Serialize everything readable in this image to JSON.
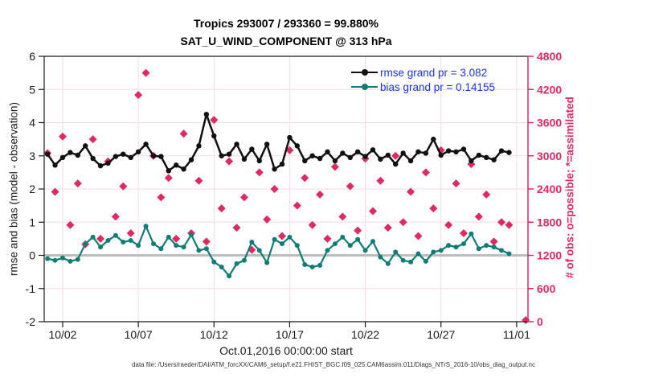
{
  "chart": {
    "title_line1": "Tropics 293007 / 293360 = 99.880%",
    "title_line2": "SAT_U_WIND_COMPONENT @ 313 hPa",
    "xlabel": "Oct.01,2016 00:00:00 start",
    "ylabel_left": "rmse and bias (model - observation)",
    "ylabel_right": "# of obs: o=possible; *=assimilated",
    "data_file": "data file: /Users/raeder/DAI/ATM_forcXX/CAM6_setup/f.e21.FHIST_BGC.f09_025.CAM6assim.011/Diags_NTrS_2016-10/obs_diag_output.nc",
    "legend": {
      "rmse_label": "rmse grand pr = 3.082",
      "bias_label": "bias grand pr = 0.14155"
    }
  },
  "chart_data": {
    "type": "line",
    "title": "Tropics 293007 / 293360 = 99.880% | SAT_U_WIND_COMPONENT @ 313 hPa",
    "xlabel": "Oct.01,2016 00:00:00 start",
    "ylabel_left": "rmse and bias (model - observation)",
    "ylabel_right": "# of obs: o=possible; *=assimilated",
    "x_axis": {
      "lim_days": [
        0.78,
        32.75
      ],
      "ticks": [
        {
          "day": 2,
          "label": "10/02"
        },
        {
          "day": 7,
          "label": "10/07"
        },
        {
          "day": 12,
          "label": "10/12"
        },
        {
          "day": 17,
          "label": "10/17"
        },
        {
          "day": 22,
          "label": "10/22"
        },
        {
          "day": 27,
          "label": "10/27"
        },
        {
          "day": 32,
          "label": "11/01"
        }
      ]
    },
    "y_left": {
      "min": -2,
      "max": 6,
      "tick_step": 1,
      "tick_labels": [
        "-2",
        "-1",
        "0",
        "1",
        "2",
        "3",
        "4",
        "5",
        "6"
      ]
    },
    "y_right": {
      "min": 0,
      "max": 4800,
      "tick_step": 600,
      "tick_labels": [
        "0",
        "600",
        "1200",
        "1800",
        "2400",
        "3000",
        "3600",
        "4200",
        "4800"
      ]
    },
    "x_days": [
      1,
      1.5,
      2,
      2.5,
      3,
      3.5,
      4,
      4.5,
      5,
      5.5,
      6,
      6.5,
      7,
      7.5,
      8,
      8.5,
      9,
      9.5,
      10,
      10.5,
      11,
      11.5,
      12,
      12.5,
      13,
      13.5,
      14,
      14.5,
      15,
      15.5,
      16,
      16.5,
      17,
      17.5,
      18,
      18.5,
      19,
      19.5,
      20,
      20.5,
      21,
      21.5,
      22,
      22.5,
      23,
      23.5,
      24,
      24.5,
      25,
      25.5,
      26,
      26.5,
      27,
      27.5,
      28,
      28.5,
      29,
      29.5,
      30,
      30.5,
      31,
      31.5
    ],
    "series": [
      {
        "name": "rmse",
        "axis": "left",
        "marker": "dot",
        "grand_mean": 3.082,
        "values": [
          3.05,
          2.72,
          2.95,
          3.1,
          3.02,
          3.3,
          2.92,
          2.7,
          2.78,
          2.98,
          3.05,
          2.95,
          3.12,
          3.35,
          3.0,
          2.98,
          2.55,
          2.72,
          2.6,
          2.88,
          3.3,
          4.25,
          3.6,
          3.0,
          3.05,
          3.35,
          2.9,
          3.2,
          2.85,
          3.35,
          2.6,
          2.75,
          3.55,
          3.3,
          2.85,
          3.0,
          2.92,
          3.12,
          2.85,
          3.08,
          2.95,
          3.12,
          2.98,
          3.18,
          2.9,
          3.02,
          2.75,
          3.08,
          2.85,
          3.12,
          3.08,
          3.5,
          3.02,
          3.15,
          3.12,
          3.2,
          2.85,
          3.02,
          2.95,
          2.88,
          3.15,
          3.1
        ]
      },
      {
        "name": "bias",
        "axis": "left",
        "marker": "dot",
        "grand_mean": 0.14155,
        "values": [
          -0.1,
          -0.15,
          -0.08,
          -0.18,
          -0.12,
          0.35,
          0.55,
          0.25,
          0.45,
          0.6,
          0.4,
          0.45,
          0.3,
          0.88,
          0.35,
          0.2,
          0.55,
          0.3,
          0.25,
          0.62,
          0.15,
          0.2,
          -0.2,
          -0.35,
          -0.62,
          -0.25,
          -0.15,
          0.4,
          0.15,
          -0.22,
          0.48,
          0.35,
          0.55,
          0.3,
          -0.28,
          -0.35,
          -0.3,
          0.15,
          0.35,
          0.55,
          0.3,
          0.48,
          0.15,
          0.42,
          -0.05,
          -0.25,
          0.1,
          -0.15,
          -0.2,
          0.05,
          -0.18,
          0.1,
          0.15,
          0.3,
          0.25,
          0.35,
          0.65,
          0.2,
          0.3,
          0.25,
          0.15,
          0.05
        ]
      },
      {
        "name": "obs_count_possible_and_assimilated",
        "axis": "right",
        "marker": "diamond",
        "note": "o=possible and *=assimilated markers coincide (99.880% assimilated)",
        "values": [
          3050,
          2350,
          3350,
          1750,
          2500,
          1400,
          3300,
          1500,
          2900,
          1900,
          2450,
          1600,
          4100,
          4500,
          3000,
          2250,
          2600,
          1500,
          3400,
          1600,
          2550,
          1450,
          3650,
          2050,
          2900,
          1700,
          2250,
          1300,
          2700,
          1850,
          2400,
          1550,
          3100,
          2100,
          2600,
          1750,
          2300,
          1500,
          2800,
          1900,
          2450,
          1650,
          2950,
          2000,
          2550,
          1700,
          3000,
          1800,
          2350,
          1550,
          2700,
          2050,
          3100,
          1750,
          2500,
          1600,
          2850,
          1900,
          2300,
          1450,
          1800,
          1750
        ]
      }
    ],
    "final_obs_point": {
      "day": 32.6,
      "value": 30
    },
    "zero_reference_line": 0,
    "grid": true,
    "legend_position": "top-right-inside",
    "colors": {
      "rmse": "#111111",
      "bias": "#0f7d75",
      "obs": "#df2a60",
      "legend_text": "#1733f2",
      "grid": "#f7d9e0",
      "zero_line": "#bdbdbd",
      "axis_black": "#1a1a1a"
    }
  }
}
